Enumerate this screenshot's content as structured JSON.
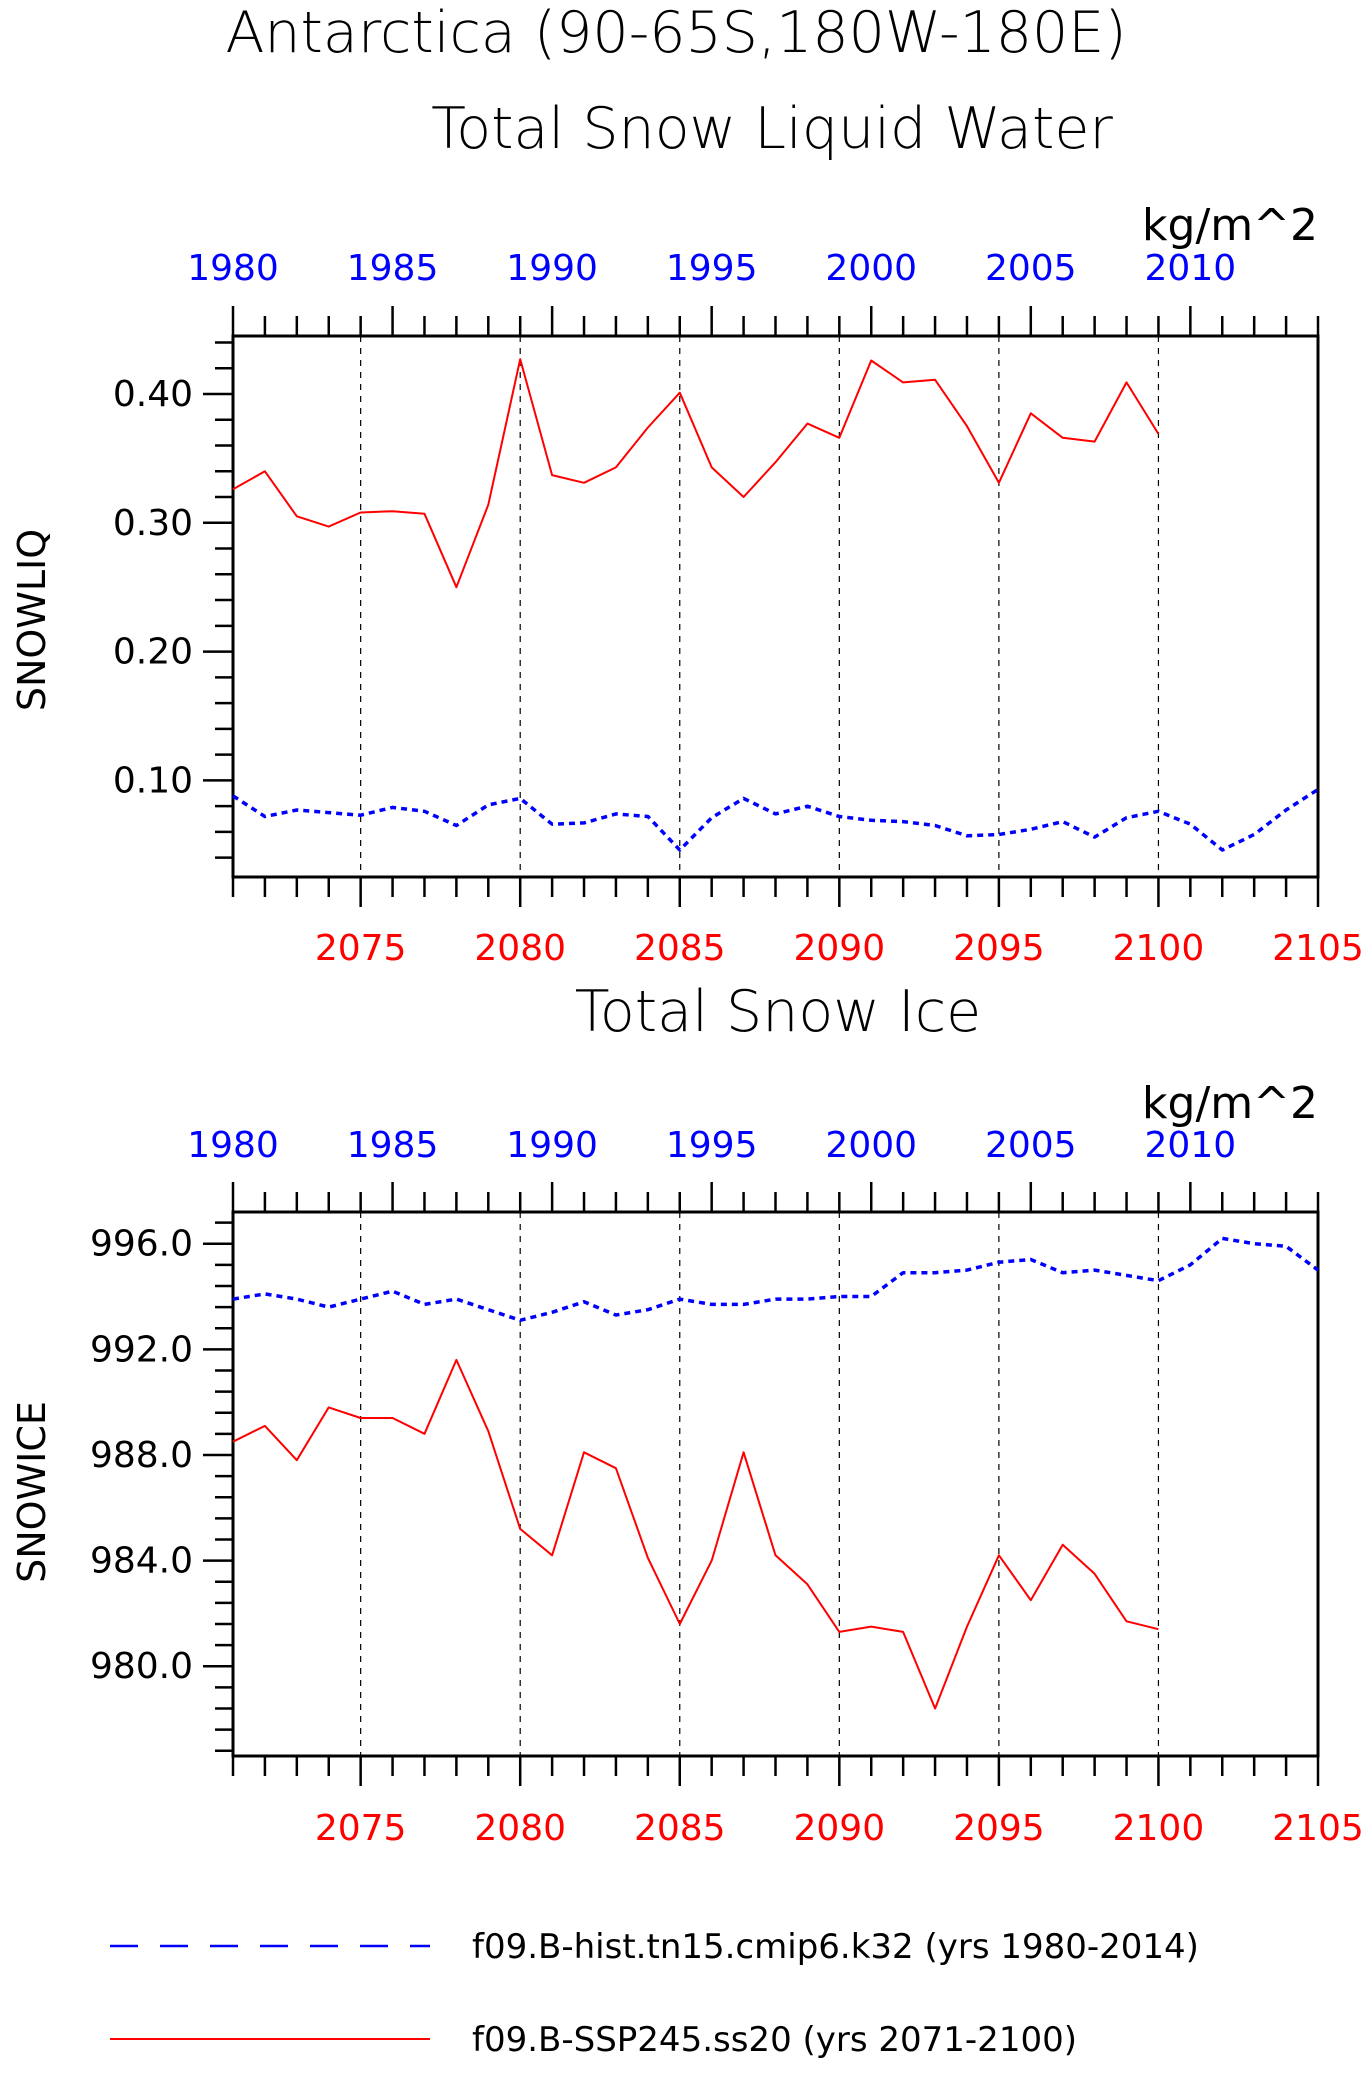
{
  "figure": {
    "title_line1": "Antarctica (90-65S,180W-180E)",
    "title_line2": "Total Snow Liquid Water"
  },
  "chart_data": [
    {
      "type": "line",
      "title": "Total Snow Liquid Water",
      "ylabel": "SNOWLIQ",
      "units": "kg/m^2",
      "ylim": [
        0.025,
        0.445
      ],
      "yticks": [
        0.1,
        0.2,
        0.3,
        0.4
      ],
      "ytick_labels": [
        "0.10",
        "0.20",
        "0.30",
        "0.40"
      ],
      "bottom_axis": {
        "range": [
          2071,
          2105
        ],
        "ticks": [
          2075,
          2080,
          2085,
          2090,
          2095,
          2100,
          2105
        ],
        "color": "#ff0000"
      },
      "top_axis": {
        "range": [
          1980,
          2014
        ],
        "ticks": [
          1980,
          1985,
          1990,
          1995,
          2000,
          2005,
          2010
        ],
        "color": "#0000ff"
      },
      "grid": "vertical dashed at bottom-axis ticks",
      "series": [
        {
          "axis": "top",
          "color": "#0000ff",
          "dash": "dotted",
          "x": [
            1980,
            1981,
            1982,
            1983,
            1984,
            1985,
            1986,
            1987,
            1988,
            1989,
            1990,
            1991,
            1992,
            1993,
            1994,
            1995,
            1996,
            1997,
            1998,
            1999,
            2000,
            2001,
            2002,
            2003,
            2004,
            2005,
            2006,
            2007,
            2008,
            2009,
            2010,
            2011,
            2012,
            2013,
            2014
          ],
          "values": [
            0.088,
            0.072,
            0.077,
            0.075,
            0.073,
            0.079,
            0.076,
            0.065,
            0.081,
            0.086,
            0.066,
            0.067,
            0.074,
            0.072,
            0.046,
            0.071,
            0.086,
            0.074,
            0.08,
            0.072,
            0.069,
            0.068,
            0.065,
            0.057,
            0.058,
            0.062,
            0.068,
            0.056,
            0.071,
            0.076,
            0.066,
            0.046,
            0.058,
            0.077,
            0.093
          ]
        },
        {
          "axis": "bottom",
          "color": "#ff0000",
          "dash": "solid",
          "x": [
            2071,
            2072,
            2073,
            2074,
            2075,
            2076,
            2077,
            2078,
            2079,
            2080,
            2081,
            2082,
            2083,
            2084,
            2085,
            2086,
            2087,
            2088,
            2089,
            2090,
            2091,
            2092,
            2093,
            2094,
            2095,
            2096,
            2097,
            2098,
            2099,
            2100
          ],
          "values": [
            0.326,
            0.34,
            0.305,
            0.297,
            0.308,
            0.309,
            0.307,
            0.25,
            0.314,
            0.427,
            0.337,
            0.331,
            0.343,
            0.374,
            0.401,
            0.343,
            0.32,
            0.347,
            0.377,
            0.366,
            0.426,
            0.409,
            0.411,
            0.375,
            0.331,
            0.385,
            0.366,
            0.363,
            0.409,
            0.369
          ]
        }
      ]
    },
    {
      "type": "line",
      "title": "Total Snow Ice",
      "ylabel": "SNOWICE",
      "units": "kg/m^2",
      "ylim": [
        976.6,
        997.2
      ],
      "yticks": [
        980.0,
        984.0,
        988.0,
        992.0,
        996.0
      ],
      "ytick_labels": [
        "980.0",
        "984.0",
        "988.0",
        "992.0",
        "996.0"
      ],
      "bottom_axis": {
        "range": [
          2071,
          2105
        ],
        "ticks": [
          2075,
          2080,
          2085,
          2090,
          2095,
          2100,
          2105
        ],
        "color": "#ff0000"
      },
      "top_axis": {
        "range": [
          1980,
          2014
        ],
        "ticks": [
          1980,
          1985,
          1990,
          1995,
          2000,
          2005,
          2010
        ],
        "color": "#0000ff"
      },
      "grid": "vertical dashed at bottom-axis ticks",
      "series": [
        {
          "axis": "top",
          "color": "#0000ff",
          "dash": "dotted",
          "x": [
            1980,
            1981,
            1982,
            1983,
            1984,
            1985,
            1986,
            1987,
            1988,
            1989,
            1990,
            1991,
            1992,
            1993,
            1994,
            1995,
            1996,
            1997,
            1998,
            1999,
            2000,
            2001,
            2002,
            2003,
            2004,
            2005,
            2006,
            2007,
            2008,
            2009,
            2010,
            2011,
            2012,
            2013,
            2014
          ],
          "values": [
            993.9,
            994.1,
            993.9,
            993.6,
            993.9,
            994.2,
            993.7,
            993.9,
            993.5,
            993.1,
            993.4,
            993.8,
            993.3,
            993.5,
            993.9,
            993.7,
            993.7,
            993.9,
            993.9,
            994.0,
            994.0,
            994.9,
            994.9,
            995.0,
            995.3,
            995.4,
            994.9,
            995.0,
            994.8,
            994.6,
            995.2,
            996.2,
            996.0,
            995.9,
            995.0
          ]
        },
        {
          "axis": "bottom",
          "color": "#ff0000",
          "dash": "solid",
          "x": [
            2071,
            2072,
            2073,
            2074,
            2075,
            2076,
            2077,
            2078,
            2079,
            2080,
            2081,
            2082,
            2083,
            2084,
            2085,
            2086,
            2087,
            2088,
            2089,
            2090,
            2091,
            2092,
            2093,
            2094,
            2095,
            2096,
            2097,
            2098,
            2099,
            2100
          ],
          "values": [
            988.5,
            989.1,
            987.8,
            989.8,
            989.4,
            989.4,
            988.8,
            991.6,
            988.9,
            985.2,
            984.2,
            988.1,
            987.5,
            984.1,
            981.6,
            984.0,
            988.1,
            984.2,
            983.1,
            981.3,
            981.5,
            981.3,
            978.4,
            981.5,
            984.2,
            982.5,
            984.6,
            983.5,
            981.7,
            981.4
          ]
        }
      ]
    }
  ],
  "legend": [
    {
      "color": "#0000ff",
      "dash": "dashed",
      "label": "f09.B-hist.tn15.cmip6.k32 (yrs 1980-2014)"
    },
    {
      "color": "#ff0000",
      "dash": "solid",
      "label": "f09.B-SSP245.ss20 (yrs 2071-2100)"
    }
  ]
}
